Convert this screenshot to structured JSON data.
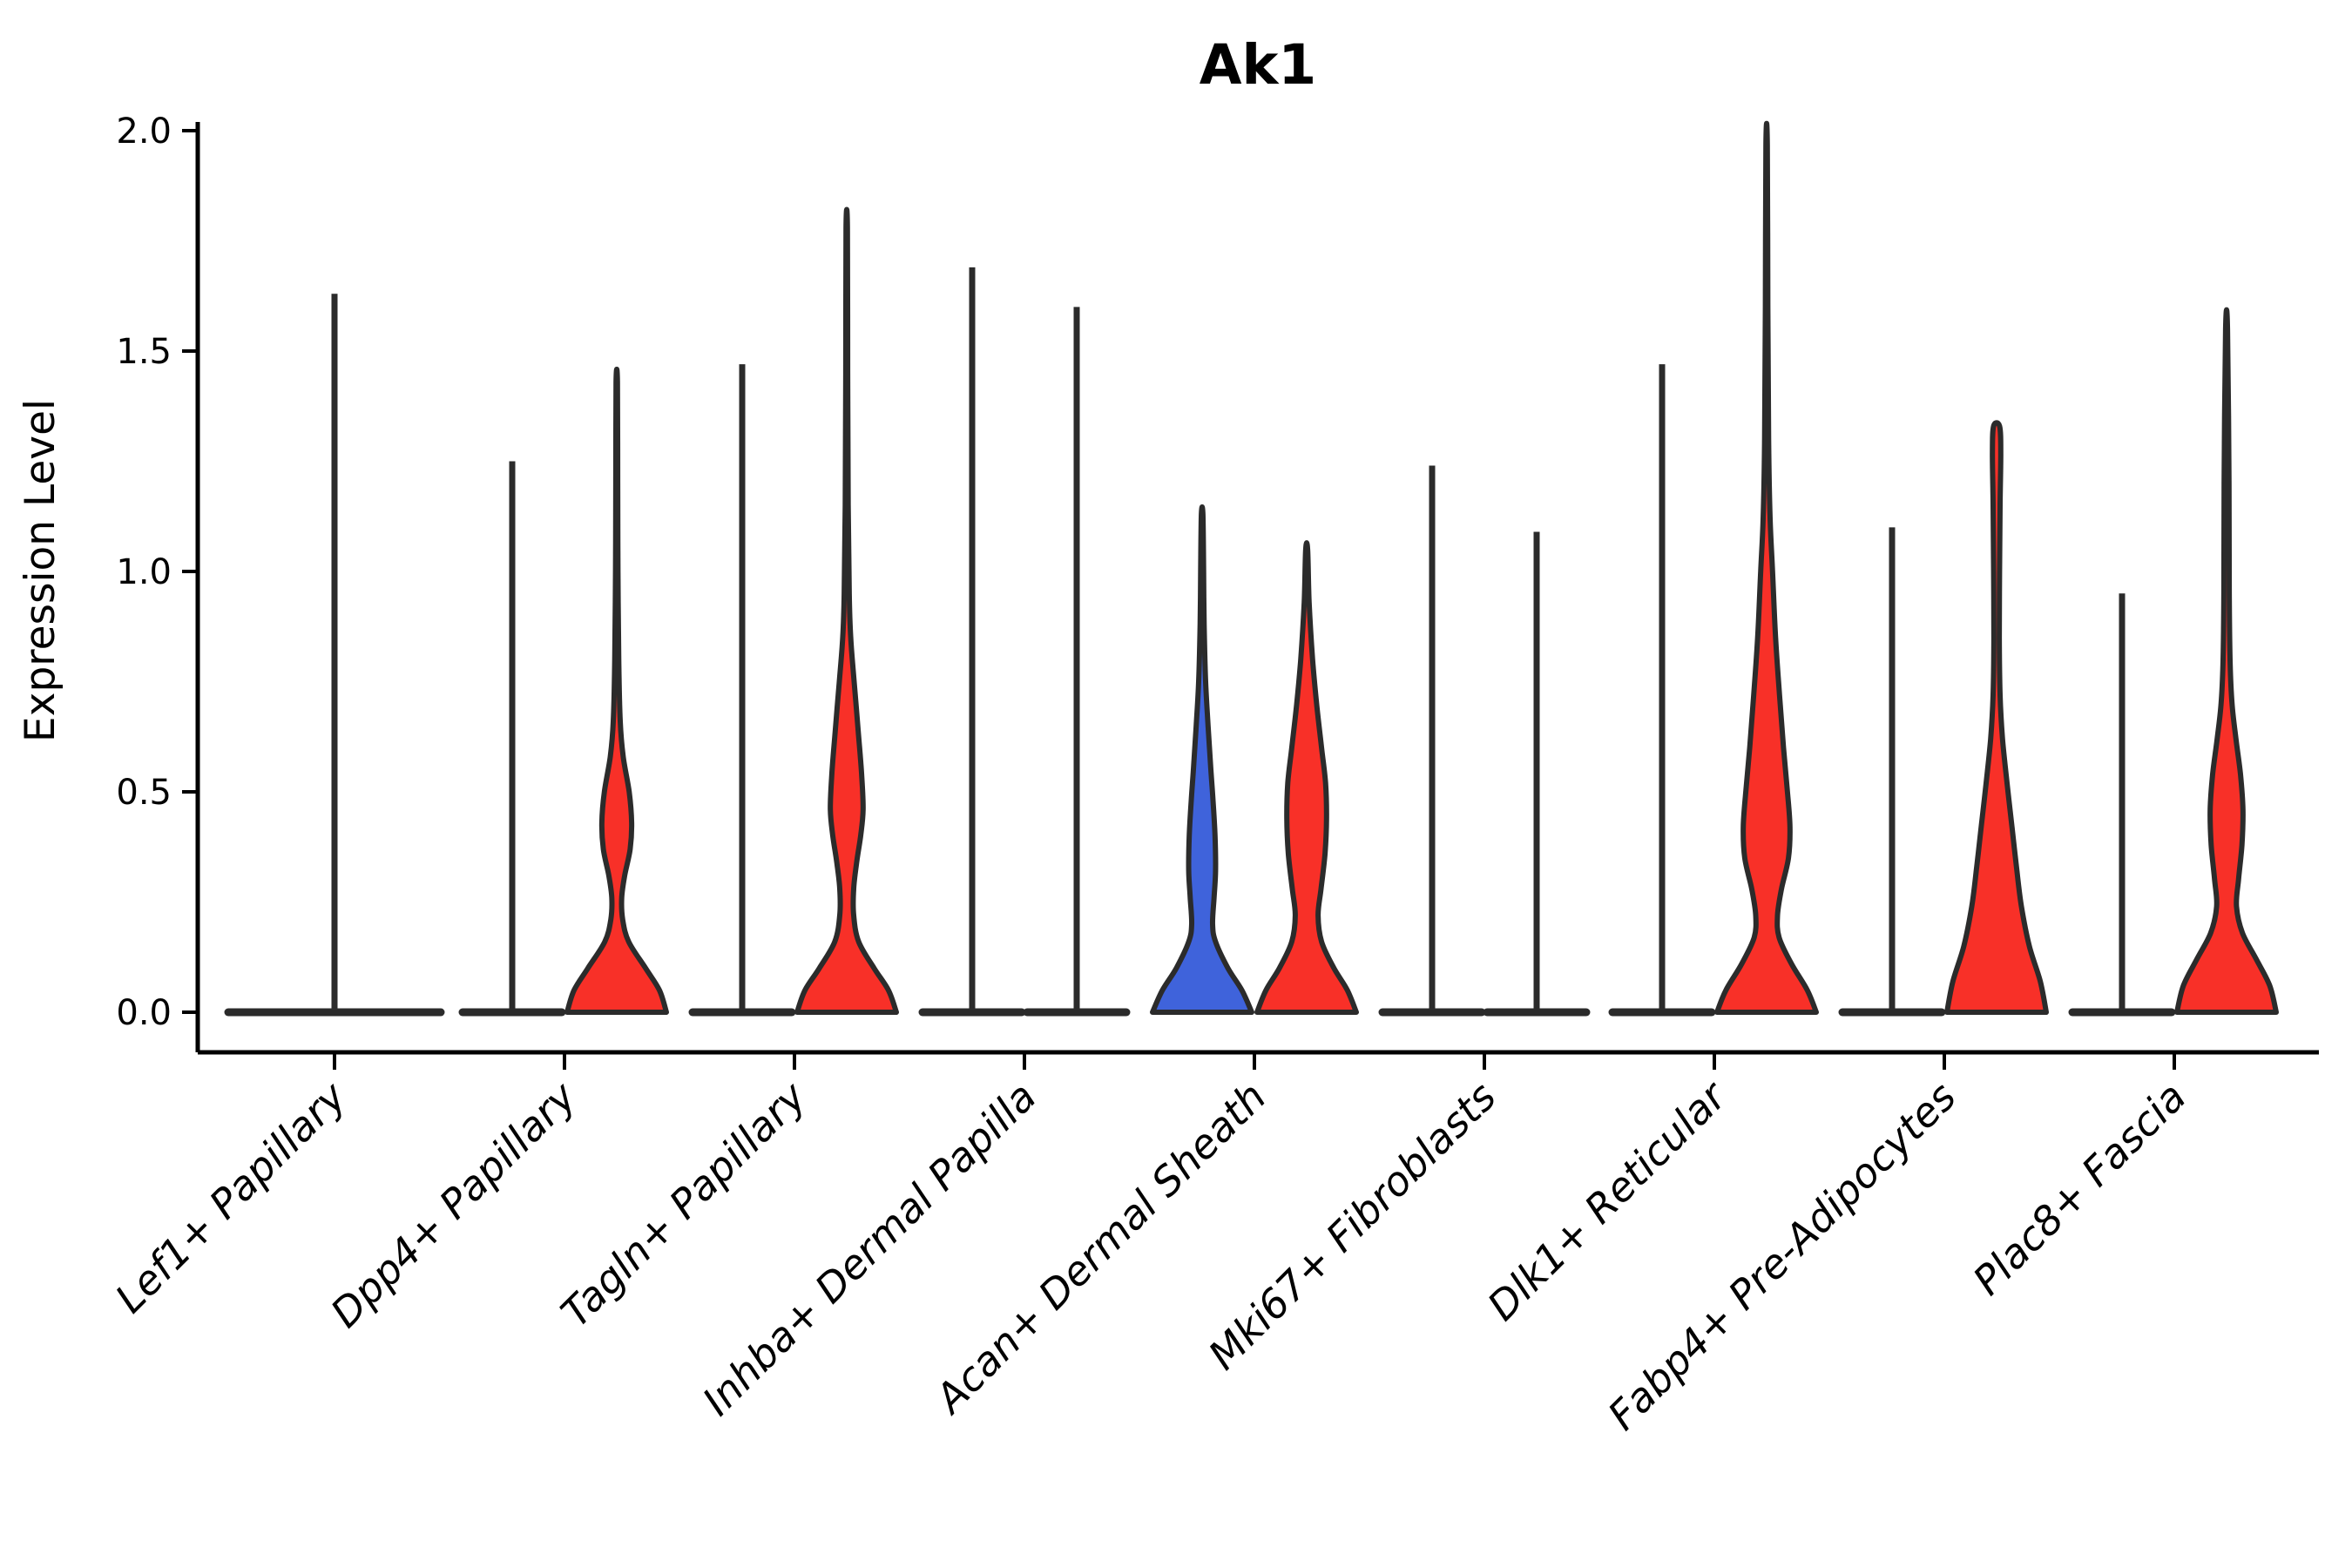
{
  "title": "Ak1",
  "colors": {
    "split1_fill": "#3F63DB",
    "split2_fill": "#F83028",
    "violin_outline": "#2B2B2B",
    "axis": "#000000",
    "background": "#FFFFFF"
  },
  "chart_data": {
    "type": "violin",
    "title": "Ak1",
    "xlabel": "",
    "ylabel": "Expression Level",
    "ylim": [
      0.0,
      2.0
    ],
    "yticks": [
      0.0,
      0.5,
      1.0,
      1.5,
      2.0
    ],
    "ytick_labels": [
      "0.0",
      "0.5",
      "1.0",
      "1.5",
      "2.0"
    ],
    "legend": "none",
    "grid": false,
    "x_rotation_deg": 45,
    "categories": [
      "Lef1+ Papillary",
      "Dpp4+ Papillary",
      "Tagln+ Papillary",
      "Inhba+ Dermal Papilla",
      "Acan+ Dermal Sheath",
      "Mki67+ Fibroblasts",
      "Dlk1+ Reticular",
      "Fabp4+ Pre-Adipocytes",
      "Plac8+ Fascia"
    ],
    "groups": [
      {
        "category": "Lef1+ Papillary",
        "violins": [
          {
            "split": "single",
            "style": "spike",
            "max": 1.63,
            "fill": "none",
            "width": 2
          }
        ]
      },
      {
        "category": "Dpp4+ Papillary",
        "violins": [
          {
            "split": "left",
            "style": "spike",
            "max": 1.25,
            "fill": "none",
            "width": 1
          },
          {
            "split": "right",
            "style": "body",
            "max": 1.43,
            "fill": "split2",
            "width": 1,
            "profile": [
              [
                0,
                1.0
              ],
              [
                0.05,
                0.86
              ],
              [
                0.1,
                0.58
              ],
              [
                0.16,
                0.24
              ],
              [
                0.21,
                0.12
              ],
              [
                0.26,
                0.1
              ],
              [
                0.31,
                0.16
              ],
              [
                0.37,
                0.27
              ],
              [
                0.43,
                0.3
              ],
              [
                0.5,
                0.25
              ],
              [
                0.58,
                0.13
              ],
              [
                0.66,
                0.07
              ],
              [
                0.8,
                0.04
              ],
              [
                1.0,
                0.025
              ],
              [
                1.2,
                0.02
              ],
              [
                1.43,
                0.013
              ]
            ]
          }
        ]
      },
      {
        "category": "Tagln+ Papillary",
        "violins": [
          {
            "split": "left",
            "style": "spike",
            "max": 1.47,
            "fill": "none",
            "width": 1
          },
          {
            "split": "right",
            "style": "body",
            "max": 1.78,
            "fill": "split2",
            "width": 1,
            "profile": [
              [
                0,
                1.0
              ],
              [
                0.05,
                0.84
              ],
              [
                0.1,
                0.55
              ],
              [
                0.16,
                0.24
              ],
              [
                0.22,
                0.14
              ],
              [
                0.28,
                0.14
              ],
              [
                0.34,
                0.2
              ],
              [
                0.4,
                0.28
              ],
              [
                0.46,
                0.33
              ],
              [
                0.54,
                0.3
              ],
              [
                0.64,
                0.23
              ],
              [
                0.75,
                0.15
              ],
              [
                0.85,
                0.08
              ],
              [
                0.95,
                0.05
              ],
              [
                1.15,
                0.03
              ],
              [
                1.45,
                0.02
              ],
              [
                1.78,
                0.013
              ]
            ]
          }
        ]
      },
      {
        "category": "Inhba+ Dermal Papilla",
        "violins": [
          {
            "split": "left",
            "style": "spike",
            "max": 1.69,
            "fill": "none",
            "width": 1
          },
          {
            "split": "right",
            "style": "spike",
            "max": 1.6,
            "fill": "none",
            "width": 1
          }
        ]
      },
      {
        "category": "Acan+ Dermal Sheath",
        "violins": [
          {
            "split": "left",
            "style": "body",
            "max": 1.13,
            "fill": "split1",
            "width": 1,
            "profile": [
              [
                0,
                1.0
              ],
              [
                0.05,
                0.8
              ],
              [
                0.1,
                0.52
              ],
              [
                0.16,
                0.27
              ],
              [
                0.2,
                0.21
              ],
              [
                0.26,
                0.24
              ],
              [
                0.32,
                0.27
              ],
              [
                0.4,
                0.26
              ],
              [
                0.48,
                0.22
              ],
              [
                0.56,
                0.17
              ],
              [
                0.65,
                0.12
              ],
              [
                0.75,
                0.07
              ],
              [
                0.88,
                0.04
              ],
              [
                1.0,
                0.03
              ],
              [
                1.13,
                0.015
              ]
            ]
          },
          {
            "split": "right",
            "style": "body",
            "max": 1.05,
            "fill": "split2",
            "width": 1,
            "profile": [
              [
                0,
                1.0
              ],
              [
                0.05,
                0.82
              ],
              [
                0.1,
                0.55
              ],
              [
                0.16,
                0.3
              ],
              [
                0.22,
                0.23
              ],
              [
                0.28,
                0.29
              ],
              [
                0.36,
                0.37
              ],
              [
                0.44,
                0.4
              ],
              [
                0.52,
                0.38
              ],
              [
                0.6,
                0.3
              ],
              [
                0.7,
                0.2
              ],
              [
                0.8,
                0.12
              ],
              [
                0.93,
                0.05
              ],
              [
                1.05,
                0.02
              ]
            ]
          }
        ]
      },
      {
        "category": "Mki67+ Fibroblasts",
        "violins": [
          {
            "split": "left",
            "style": "spike",
            "max": 1.24,
            "fill": "none",
            "width": 1
          },
          {
            "split": "right",
            "style": "spike",
            "max": 1.09,
            "fill": "none",
            "width": 1
          }
        ]
      },
      {
        "category": "Dlk1+ Reticular",
        "violins": [
          {
            "split": "left",
            "style": "spike",
            "max": 1.47,
            "fill": "none",
            "width": 1
          },
          {
            "split": "right",
            "style": "body",
            "max": 1.97,
            "fill": "split2",
            "width": 1,
            "profile": [
              [
                0,
                1.0
              ],
              [
                0.05,
                0.82
              ],
              [
                0.11,
                0.5
              ],
              [
                0.17,
                0.25
              ],
              [
                0.22,
                0.22
              ],
              [
                0.28,
                0.3
              ],
              [
                0.35,
                0.44
              ],
              [
                0.42,
                0.47
              ],
              [
                0.5,
                0.42
              ],
              [
                0.6,
                0.34
              ],
              [
                0.72,
                0.26
              ],
              [
                0.85,
                0.18
              ],
              [
                1.0,
                0.12
              ],
              [
                1.12,
                0.07
              ],
              [
                1.3,
                0.04
              ],
              [
                1.6,
                0.025
              ],
              [
                1.97,
                0.014
              ]
            ]
          }
        ]
      },
      {
        "category": "Fabp4+ Pre-Adipocytes",
        "violins": [
          {
            "split": "left",
            "style": "spike",
            "max": 1.1,
            "fill": "none",
            "width": 1
          },
          {
            "split": "right",
            "style": "body",
            "max": 1.33,
            "fill": "split2",
            "width": 1,
            "profile": [
              [
                0,
                1.0
              ],
              [
                0.07,
                0.88
              ],
              [
                0.15,
                0.66
              ],
              [
                0.24,
                0.5
              ],
              [
                0.33,
                0.4
              ],
              [
                0.42,
                0.31
              ],
              [
                0.52,
                0.21
              ],
              [
                0.62,
                0.12
              ],
              [
                0.72,
                0.07
              ],
              [
                0.85,
                0.055
              ],
              [
                1.0,
                0.06
              ],
              [
                1.15,
                0.07
              ],
              [
                1.27,
                0.085
              ],
              [
                1.33,
                0.06
              ]
            ]
          }
        ]
      },
      {
        "category": "Plac8+ Fascia",
        "violins": [
          {
            "split": "left",
            "style": "spike",
            "max": 0.95,
            "fill": "none",
            "width": 1
          },
          {
            "split": "right",
            "style": "body",
            "max": 1.55,
            "fill": "split2",
            "width": 1,
            "profile": [
              [
                0,
                1.0
              ],
              [
                0.06,
                0.87
              ],
              [
                0.12,
                0.6
              ],
              [
                0.18,
                0.32
              ],
              [
                0.24,
                0.2
              ],
              [
                0.3,
                0.24
              ],
              [
                0.38,
                0.31
              ],
              [
                0.46,
                0.33
              ],
              [
                0.54,
                0.28
              ],
              [
                0.62,
                0.19
              ],
              [
                0.7,
                0.11
              ],
              [
                0.8,
                0.07
              ],
              [
                0.95,
                0.055
              ],
              [
                1.2,
                0.05
              ],
              [
                1.55,
                0.02
              ]
            ]
          }
        ]
      }
    ]
  }
}
